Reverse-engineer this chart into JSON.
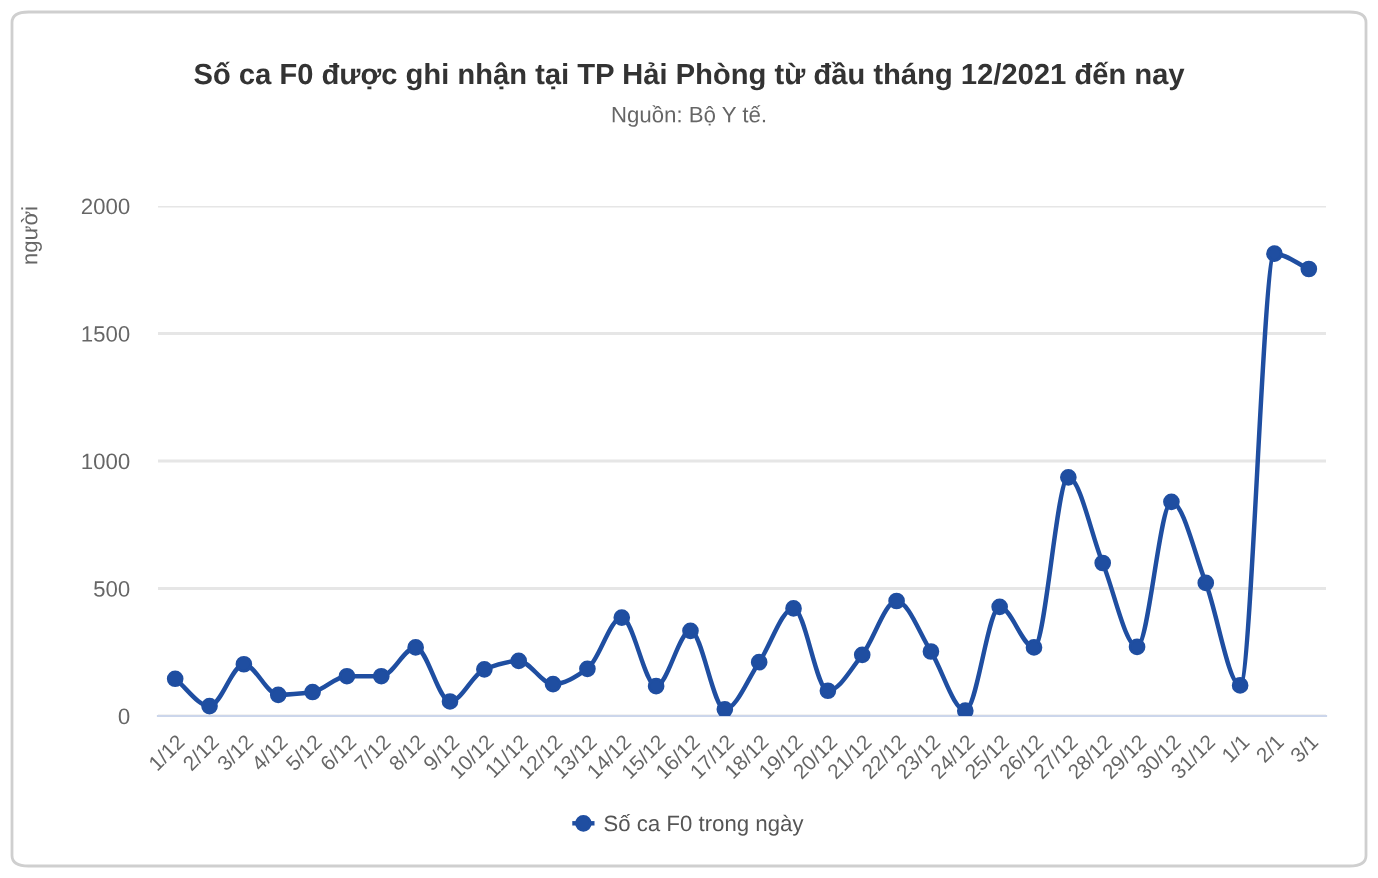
{
  "chart_data": {
    "type": "line",
    "title": "Số ca F0 được ghi nhận tại TP Hải Phòng từ đầu tháng 12/2021 đến nay",
    "annotations": [
      "Nguồn: Bộ Y tế."
    ],
    "ylabel": "người",
    "categories": [
      "1/12",
      "2/12",
      "3/12",
      "4/12",
      "5/12",
      "6/12",
      "7/12",
      "8/12",
      "9/12",
      "10/12",
      "11/12",
      "12/12",
      "13/12",
      "14/12",
      "15/12",
      "16/12",
      "17/12",
      "18/12",
      "19/12",
      "20/12",
      "21/12",
      "22/12",
      "23/12",
      "24/12",
      "25/12",
      "26/12",
      "27/12",
      "28/12",
      "29/12",
      "30/12",
      "31/12",
      "1/1",
      "2/1",
      "3/1"
    ],
    "series": [
      {
        "name": "Số ca F0 trong ngày",
        "color": "#1f4ea1",
        "values": [
          146,
          39,
          203,
          83,
          94,
          156,
          156,
          269,
          57,
          183,
          216,
          125,
          185,
          386,
          117,
          334,
          26,
          211,
          422,
          99,
          240,
          451,
          253,
          21,
          428,
          269,
          936,
          600,
          271,
          840,
          522,
          120,
          1813,
          1753
        ]
      }
    ],
    "ylim": [
      0,
      2000
    ],
    "yticks": [
      0,
      500,
      1000,
      1500,
      2000
    ],
    "grid": "y",
    "legend": "bottom",
    "marker": "circle"
  }
}
